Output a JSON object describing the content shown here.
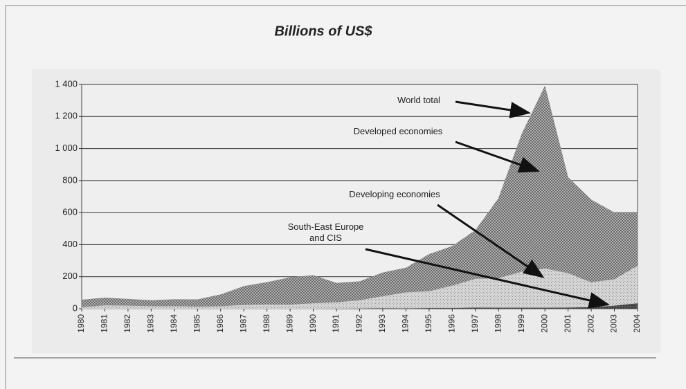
{
  "chart_data": {
    "type": "stacked-area",
    "title": "Billions of US$",
    "categories": [
      "1980",
      "1981",
      "1982",
      "1983",
      "1984",
      "1985",
      "1986",
      "1987",
      "1988",
      "1989",
      "1990",
      "1991",
      "1992",
      "1993",
      "1994",
      "1995",
      "1996",
      "1997",
      "1998",
      "1999",
      "2000",
      "2001",
      "2002",
      "2003",
      "2004"
    ],
    "series": [
      {
        "name": "South-East Europe and CIS",
        "color": "#555555",
        "values": [
          0,
          0,
          0,
          0,
          0,
          0,
          0,
          0,
          0,
          0,
          0,
          1,
          2,
          4,
          3,
          5,
          5,
          8,
          7,
          7,
          7,
          8,
          11,
          20,
          35
        ]
      },
      {
        "name": "Developing economies",
        "color": "#c8c8c8",
        "values": [
          10,
          22,
          20,
          17,
          17,
          14,
          16,
          25,
          28,
          27,
          35,
          40,
          52,
          75,
          100,
          105,
          140,
          180,
          185,
          225,
          245,
          215,
          155,
          165,
          235
        ]
      },
      {
        "name": "Developed economies",
        "color": "#8a8a8a",
        "values": [
          45,
          46,
          40,
          35,
          41,
          43,
          72,
          115,
          137,
          168,
          173,
          119,
          116,
          146,
          152,
          230,
          245,
          302,
          498,
          858,
          1138,
          597,
          514,
          415,
          330
        ]
      }
    ],
    "annotations": [
      "World total"
    ],
    "ylim": [
      0,
      1400
    ],
    "yticks": [
      0,
      200,
      400,
      600,
      800,
      {
        "value": 1000,
        "label": "1 000"
      },
      {
        "value": 1200,
        "label": "1 200"
      },
      {
        "value": 1400,
        "label": "1 400"
      }
    ],
    "grid": true
  }
}
